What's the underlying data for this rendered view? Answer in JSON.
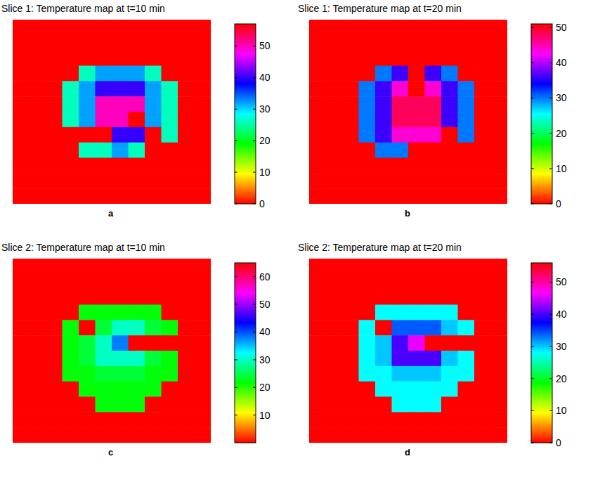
{
  "chart_data": [
    {
      "type": "heatmap",
      "title": "Slice 1: Temperature map at t=10 min",
      "annotation": "a",
      "tick_labels": false,
      "colorbar_range": [
        0,
        57
      ],
      "colorbar_ticks": [
        0,
        10,
        20,
        30,
        40,
        50
      ],
      "cells": [
        [
          0,
          0,
          0,
          0,
          0,
          0,
          0,
          0,
          0,
          0,
          0,
          0
        ],
        [
          0,
          0,
          0,
          0,
          0,
          0,
          0,
          0,
          0,
          0,
          0,
          0
        ],
        [
          0,
          0,
          0,
          0,
          0,
          0,
          0,
          0,
          0,
          0,
          0,
          0
        ],
        [
          0,
          0,
          0,
          0,
          26,
          32,
          32,
          32,
          26,
          0,
          0,
          0
        ],
        [
          0,
          0,
          0,
          26,
          32,
          40,
          40,
          40,
          32,
          26,
          0,
          0
        ],
        [
          0,
          0,
          0,
          26,
          32,
          50,
          50,
          50,
          32,
          26,
          0,
          0
        ],
        [
          0,
          0,
          0,
          26,
          32,
          50,
          50,
          0,
          32,
          26,
          0,
          0
        ],
        [
          0,
          0,
          0,
          0,
          0,
          0,
          40,
          40,
          0,
          26,
          0,
          0
        ],
        [
          0,
          0,
          0,
          0,
          26,
          26,
          32,
          26,
          0,
          0,
          0,
          0
        ],
        [
          0,
          0,
          0,
          0,
          0,
          0,
          0,
          0,
          0,
          0,
          0,
          0
        ],
        [
          0,
          0,
          0,
          0,
          0,
          0,
          0,
          0,
          0,
          0,
          0,
          0
        ],
        [
          0,
          0,
          0,
          0,
          0,
          0,
          0,
          0,
          0,
          0,
          0,
          0
        ]
      ]
    },
    {
      "type": "heatmap",
      "title": "Slice 1: Temperature map at t=20 min",
      "annotation": "b",
      "tick_labels": false,
      "colorbar_range": [
        0,
        51
      ],
      "colorbar_ticks": [
        0,
        10,
        20,
        30,
        40,
        50
      ],
      "cells": [
        [
          0,
          0,
          0,
          0,
          0,
          0,
          0,
          0,
          0,
          0,
          0,
          0
        ],
        [
          0,
          0,
          0,
          0,
          0,
          0,
          0,
          0,
          0,
          0,
          0,
          0
        ],
        [
          0,
          0,
          0,
          0,
          0,
          0,
          0,
          0,
          0,
          0,
          0,
          0
        ],
        [
          0,
          0,
          0,
          0,
          30,
          36,
          0,
          36,
          30,
          0,
          0,
          0
        ],
        [
          0,
          0,
          0,
          30,
          36,
          44,
          0,
          44,
          36,
          30,
          0,
          0
        ],
        [
          0,
          0,
          0,
          30,
          36,
          48,
          48,
          48,
          36,
          30,
          0,
          0
        ],
        [
          0,
          0,
          0,
          30,
          36,
          48,
          48,
          48,
          36,
          30,
          0,
          0
        ],
        [
          0,
          0,
          0,
          30,
          36,
          44,
          44,
          44,
          0,
          30,
          0,
          0
        ],
        [
          0,
          0,
          0,
          0,
          30,
          30,
          0,
          0,
          0,
          0,
          0,
          0
        ],
        [
          0,
          0,
          0,
          0,
          0,
          0,
          0,
          0,
          0,
          0,
          0,
          0
        ],
        [
          0,
          0,
          0,
          0,
          0,
          0,
          0,
          0,
          0,
          0,
          0,
          0
        ],
        [
          0,
          0,
          0,
          0,
          0,
          0,
          0,
          0,
          0,
          0,
          0,
          0
        ]
      ]
    },
    {
      "type": "heatmap",
      "title": "Slice 2: Temperature map at t=10 min",
      "annotation": "c",
      "tick_labels": false,
      "colorbar_range": [
        0,
        65
      ],
      "colorbar_ticks": [
        10,
        20,
        30,
        40,
        50,
        60
      ],
      "cells": [
        [
          0,
          0,
          0,
          0,
          0,
          0,
          0,
          0,
          0,
          0,
          0,
          0
        ],
        [
          0,
          0,
          0,
          0,
          0,
          0,
          0,
          0,
          0,
          0,
          0,
          0
        ],
        [
          0,
          0,
          0,
          0,
          0,
          0,
          0,
          0,
          0,
          0,
          0,
          0
        ],
        [
          0,
          0,
          0,
          0,
          22,
          22,
          22,
          22,
          22,
          0,
          0,
          0
        ],
        [
          0,
          0,
          0,
          22,
          0,
          24,
          30,
          30,
          24,
          22,
          0,
          0
        ],
        [
          0,
          0,
          0,
          22,
          24,
          30,
          38,
          0,
          0,
          0,
          0,
          0
        ],
        [
          0,
          0,
          0,
          22,
          24,
          30,
          30,
          30,
          24,
          22,
          0,
          0
        ],
        [
          0,
          0,
          0,
          22,
          22,
          24,
          24,
          24,
          22,
          22,
          0,
          0
        ],
        [
          0,
          0,
          0,
          0,
          22,
          22,
          22,
          22,
          22,
          0,
          0,
          0
        ],
        [
          0,
          0,
          0,
          0,
          0,
          22,
          22,
          22,
          0,
          0,
          0,
          0
        ],
        [
          0,
          0,
          0,
          0,
          0,
          0,
          0,
          0,
          0,
          0,
          0,
          0
        ],
        [
          0,
          0,
          0,
          0,
          0,
          0,
          0,
          0,
          0,
          0,
          0,
          0
        ]
      ]
    },
    {
      "type": "heatmap",
      "title": "Slice 2: Temperature map at t=20 min",
      "annotation": "d",
      "tick_labels": false,
      "colorbar_range": [
        0,
        56
      ],
      "colorbar_ticks": [
        0,
        10,
        20,
        30,
        40,
        50
      ],
      "cells": [
        [
          0,
          0,
          0,
          0,
          0,
          0,
          0,
          0,
          0,
          0,
          0,
          0
        ],
        [
          0,
          0,
          0,
          0,
          0,
          0,
          0,
          0,
          0,
          0,
          0,
          0
        ],
        [
          0,
          0,
          0,
          0,
          0,
          0,
          0,
          0,
          0,
          0,
          0,
          0
        ],
        [
          0,
          0,
          0,
          0,
          28,
          28,
          28,
          28,
          28,
          0,
          0,
          0
        ],
        [
          0,
          0,
          0,
          28,
          0,
          34,
          34,
          34,
          30,
          28,
          0,
          0
        ],
        [
          0,
          0,
          0,
          28,
          30,
          40,
          46,
          0,
          0,
          0,
          0,
          0
        ],
        [
          0,
          0,
          0,
          28,
          30,
          40,
          40,
          40,
          30,
          28,
          0,
          0
        ],
        [
          0,
          0,
          0,
          28,
          28,
          30,
          30,
          30,
          28,
          28,
          0,
          0
        ],
        [
          0,
          0,
          0,
          0,
          28,
          28,
          28,
          28,
          28,
          0,
          0,
          0
        ],
        [
          0,
          0,
          0,
          0,
          0,
          28,
          28,
          28,
          0,
          0,
          0,
          0
        ],
        [
          0,
          0,
          0,
          0,
          0,
          0,
          0,
          0,
          0,
          0,
          0,
          0
        ],
        [
          0,
          0,
          0,
          0,
          0,
          0,
          0,
          0,
          0,
          0,
          0,
          0
        ]
      ]
    }
  ]
}
